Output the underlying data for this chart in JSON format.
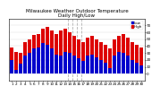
{
  "title": "Milwaukee Weather Outdoor Temperature\nDaily High/Low",
  "background_color": "#ffffff",
  "grid_color": "#dddddd",
  "bar_width": 0.4,
  "highs": [
    38,
    32,
    30,
    46,
    50,
    56,
    58,
    65,
    68,
    62,
    58,
    62,
    65,
    60,
    55,
    50,
    46,
    52,
    55,
    50,
    46,
    42,
    36,
    50,
    55,
    58,
    52,
    46,
    42,
    38
  ],
  "lows": [
    20,
    5,
    14,
    26,
    30,
    36,
    38,
    44,
    42,
    36,
    28,
    26,
    32,
    30,
    26,
    22,
    18,
    26,
    28,
    24,
    20,
    16,
    8,
    26,
    32,
    30,
    26,
    20,
    16,
    12
  ],
  "days": [
    1,
    2,
    3,
    4,
    5,
    6,
    7,
    8,
    9,
    10,
    11,
    12,
    13,
    14,
    15,
    16,
    17,
    18,
    19,
    20,
    21,
    22,
    23,
    24,
    25,
    26,
    27,
    28,
    29,
    30
  ],
  "high_color": "#dd0000",
  "low_color": "#0000cc",
  "vline_positions": [
    12.5,
    13.5,
    14.5,
    15.5
  ],
  "ylim_min": -10,
  "ylim_max": 80,
  "yticks": [
    0,
    10,
    20,
    30,
    40,
    50,
    60,
    70
  ],
  "title_fontsize": 4.0,
  "tick_fontsize": 3.0,
  "legend_fontsize": 3.0
}
